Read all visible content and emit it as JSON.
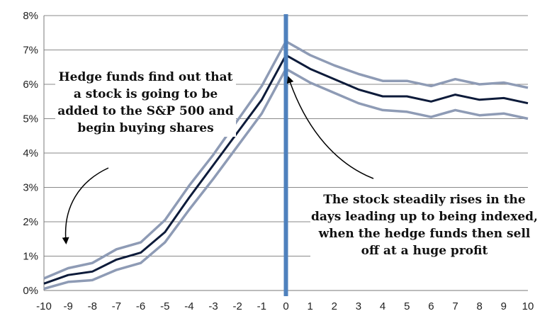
{
  "chart_data": {
    "type": "line",
    "title": "",
    "xlabel": "",
    "ylabel": "",
    "x": [
      -10,
      -9,
      -8,
      -7,
      -6,
      -5,
      -4,
      -3,
      -2,
      -1,
      0,
      1,
      2,
      3,
      4,
      5,
      6,
      7,
      8,
      9,
      10
    ],
    "x_tick_labels": [
      "-10",
      "-9",
      "-8",
      "-7",
      "-6",
      "-5",
      "-4",
      "-3",
      "-2",
      "-1",
      "0",
      "1",
      "2",
      "3",
      "4",
      "5",
      "6",
      "7",
      "8",
      "9",
      "10"
    ],
    "xlim": [
      -10,
      10
    ],
    "ylim": [
      0,
      8
    ],
    "y_unit": "%",
    "y_tick_labels": [
      "0%",
      "1%",
      "2%",
      "3%",
      "4%",
      "5%",
      "6%",
      "7%",
      "8%"
    ],
    "grid": "horizontal",
    "legend": "none",
    "vertical_marker_x": 0,
    "series": [
      {
        "role": "upper-band",
        "color": "#8e9bb5",
        "values": [
          0.35,
          0.65,
          0.8,
          1.2,
          1.4,
          2.05,
          3.05,
          3.95,
          4.95,
          5.95,
          7.25,
          6.85,
          6.55,
          6.3,
          6.1,
          6.1,
          5.95,
          6.15,
          6.0,
          6.05,
          5.9
        ]
      },
      {
        "role": "mean",
        "color": "#0d1b3a",
        "values": [
          0.2,
          0.45,
          0.55,
          0.9,
          1.1,
          1.7,
          2.7,
          3.65,
          4.6,
          5.55,
          6.85,
          6.45,
          6.15,
          5.85,
          5.65,
          5.65,
          5.5,
          5.7,
          5.55,
          5.6,
          5.45
        ]
      },
      {
        "role": "lower-band",
        "color": "#8e9bb5",
        "values": [
          0.05,
          0.25,
          0.3,
          0.6,
          0.8,
          1.4,
          2.35,
          3.25,
          4.2,
          5.15,
          6.45,
          6.05,
          5.75,
          5.45,
          5.25,
          5.2,
          5.05,
          5.25,
          5.1,
          5.15,
          5.0
        ]
      }
    ],
    "colors": {
      "marker": "#4f81bd",
      "grid": "#8a8a8a",
      "axis": "#7a7a7a"
    },
    "annotations": [
      {
        "id": "left",
        "text": "Hedge funds find out that a stock is going to be added to the S&P 500 and begin buying shares"
      },
      {
        "id": "right",
        "text": "The stock steadily rises in the days leading up to being indexed, when the hedge funds then sell off at a huge profit"
      }
    ]
  }
}
